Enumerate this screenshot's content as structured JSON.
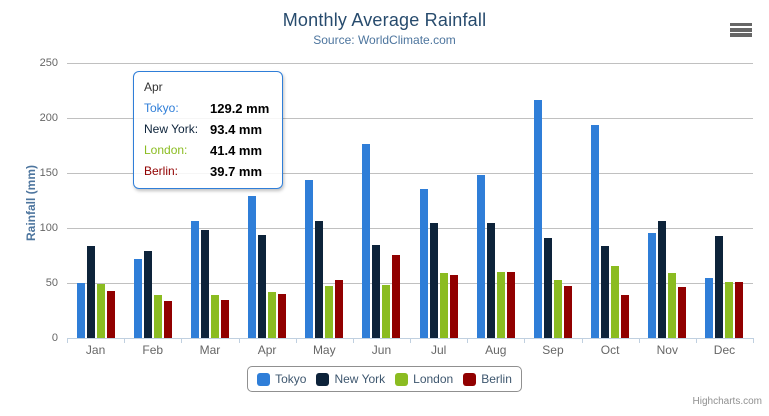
{
  "chart_data": {
    "type": "bar",
    "title": "Monthly Average Rainfall",
    "subtitle": "Source: WorldClimate.com",
    "xlabel": "",
    "ylabel": "Rainfall (mm)",
    "ylim": [
      0,
      250
    ],
    "ytick_interval": 50,
    "grid": true,
    "legend_position": "bottom",
    "unit": "mm",
    "categories": [
      "Jan",
      "Feb",
      "Mar",
      "Apr",
      "May",
      "Jun",
      "Jul",
      "Aug",
      "Sep",
      "Oct",
      "Nov",
      "Dec"
    ],
    "series": [
      {
        "name": "Tokyo",
        "color": "#2F7ED8",
        "values": [
          49.9,
          71.5,
          106.4,
          129.2,
          144.0,
          176.0,
          135.6,
          148.5,
          216.4,
          194.1,
          95.6,
          54.4
        ]
      },
      {
        "name": "New York",
        "color": "#0D233A",
        "values": [
          83.6,
          78.8,
          98.5,
          93.4,
          106.0,
          84.5,
          105.0,
          104.3,
          91.2,
          83.5,
          106.6,
          92.3
        ]
      },
      {
        "name": "London",
        "color": "#8BBC21",
        "values": [
          48.9,
          38.8,
          39.3,
          41.4,
          47.0,
          48.3,
          59.0,
          59.6,
          52.4,
          65.2,
          59.3,
          51.2
        ]
      },
      {
        "name": "Berlin",
        "color": "#910000",
        "values": [
          42.4,
          33.2,
          34.5,
          39.7,
          52.6,
          75.5,
          57.4,
          60.4,
          47.6,
          39.1,
          46.8,
          51.1
        ]
      }
    ]
  },
  "tooltip": {
    "category": "Apr",
    "border_color": "#2F7ED8",
    "rows": [
      {
        "name": "Tokyo:",
        "color": "#2F7ED8",
        "value": "129.2 mm"
      },
      {
        "name": "New York:",
        "color": "#0D233A",
        "value": "93.4 mm"
      },
      {
        "name": "London:",
        "color": "#8BBC21",
        "value": "41.4 mm"
      },
      {
        "name": "Berlin:",
        "color": "#910000",
        "value": "39.7 mm"
      }
    ]
  },
  "colors": {
    "title": "#274B6D",
    "subtitle": "#4D759E",
    "axis_labels": "#666666",
    "gridline": "#C0C0C0",
    "axis_line": "#C0D0E0",
    "legend_text": "#3E576F",
    "legend_border": "#909090",
    "credits": "#909090"
  },
  "menu": {
    "icon": "hamburger-icon"
  },
  "credit": "Highcharts.com"
}
